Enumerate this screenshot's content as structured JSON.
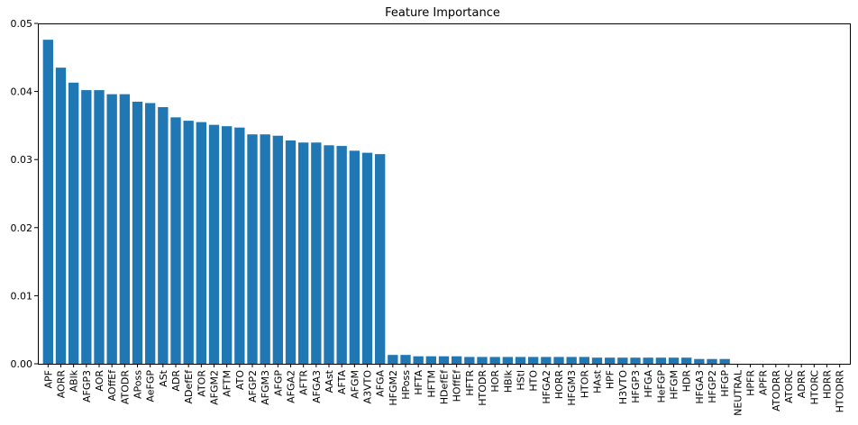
{
  "chart_data": {
    "type": "bar",
    "title": "Feature Importance",
    "xlabel": "",
    "ylabel": "",
    "ylim": [
      0,
      0.05
    ],
    "yticks": [
      "0.00",
      "0.01",
      "0.02",
      "0.03",
      "0.04",
      "0.05"
    ],
    "yticks_values": [
      0,
      0.01,
      0.02,
      0.03,
      0.04,
      0.05
    ],
    "grid": false,
    "bar_color": "#1f77b4",
    "categories": [
      "APF",
      "AORR",
      "ABlk",
      "AFGP3",
      "AOR",
      "AOffEf",
      "ATODR",
      "APoss",
      "AeFGP",
      "ASt",
      "ADR",
      "ADefEf",
      "ATOR",
      "AFGM2",
      "AFTM",
      "ATO",
      "AFGP2",
      "AFGM3",
      "AFGP",
      "AFGA2",
      "AFTR",
      "AFGA3",
      "AAst",
      "AFTA",
      "AFGM",
      "A3VTO",
      "AFGA",
      "HFGM2",
      "HPoss",
      "HFTA",
      "HFTM",
      "HDefEf",
      "HOffEf",
      "HFTR",
      "HTODR",
      "HOR",
      "HBlk",
      "HStl",
      "HTO",
      "HFGA2",
      "HORR",
      "HFGM3",
      "HTOR",
      "HAst",
      "HPF",
      "H3VTO",
      "HFGP3",
      "HFGA",
      "HeFGP",
      "HFGM",
      "HDR",
      "HFGA3",
      "HFGP2",
      "HFGP",
      "NEUTRAL",
      "HPFR",
      "APFR",
      "ATODRR",
      "ATORC",
      "ADRR",
      "HTORC",
      "HDRR",
      "HTODRR"
    ],
    "values": [
      0.0476,
      0.0435,
      0.0413,
      0.0402,
      0.0402,
      0.0396,
      0.0396,
      0.0385,
      0.0383,
      0.0377,
      0.0362,
      0.0357,
      0.0355,
      0.0351,
      0.0349,
      0.0347,
      0.0337,
      0.0337,
      0.0335,
      0.0328,
      0.0325,
      0.0325,
      0.0321,
      0.032,
      0.0313,
      0.031,
      0.0308,
      0.0013,
      0.0013,
      0.0011,
      0.0011,
      0.0011,
      0.0011,
      0.001,
      0.001,
      0.001,
      0.001,
      0.001,
      0.001,
      0.001,
      0.001,
      0.001,
      0.001,
      0.0009,
      0.0009,
      0.0009,
      0.0009,
      0.0009,
      0.0009,
      0.0009,
      0.0009,
      0.0007,
      0.0007,
      0.0007,
      0,
      0,
      0,
      0,
      0,
      0,
      0,
      0,
      0
    ]
  }
}
